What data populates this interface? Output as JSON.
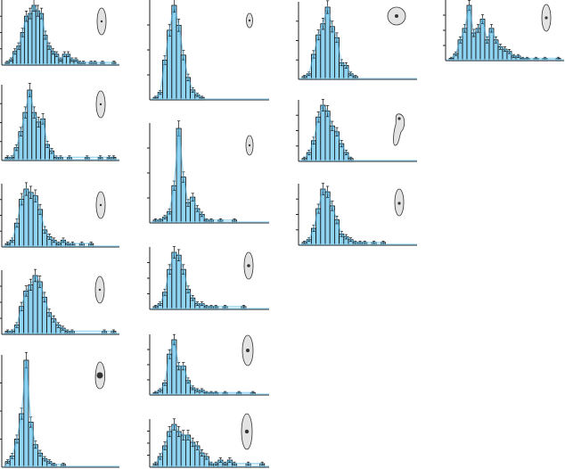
{
  "chart_data": [
    {
      "type": "bar",
      "column": 1,
      "row": 1,
      "shape": "ellipse",
      "dot": "center",
      "values": [
        1,
        2,
        5,
        7,
        12,
        18,
        19,
        22,
        20,
        19,
        11,
        7,
        5,
        4,
        2,
        4,
        4,
        2,
        2,
        1,
        1,
        0,
        1,
        1,
        0,
        1,
        0,
        0,
        1
      ]
    },
    {
      "type": "bar",
      "column": 1,
      "row": 2,
      "shape": "ellipse",
      "dot": "center",
      "values": [
        1,
        1,
        4,
        9,
        15,
        22,
        15,
        12,
        13,
        5,
        3,
        1,
        1,
        0,
        1,
        0,
        0,
        0,
        1,
        0,
        0,
        1,
        0,
        1,
        1
      ]
    },
    {
      "type": "bar",
      "column": 1,
      "row": 3,
      "shape": "ellipse",
      "dot": "center",
      "values": [
        1,
        2,
        7,
        14,
        17,
        16,
        15,
        11,
        5,
        3,
        2,
        1,
        2,
        1,
        1,
        0,
        1,
        0,
        1
      ]
    },
    {
      "type": "bar",
      "column": 1,
      "row": 4,
      "shape": "ellipse",
      "dot": "center",
      "values": [
        1,
        1,
        3,
        9,
        14,
        16,
        19,
        17,
        12,
        7,
        5,
        3,
        2,
        1,
        1,
        0,
        0,
        0,
        0,
        0,
        0,
        1,
        0,
        1
      ]
    },
    {
      "type": "bar",
      "column": 1,
      "row": 5,
      "shape": "pear",
      "dot": "large",
      "values": [
        2,
        4,
        10,
        19,
        38,
        16,
        8,
        5,
        3,
        2,
        1,
        0,
        1
      ]
    },
    {
      "type": "bar",
      "column": 2,
      "row": 1,
      "shape": "ellipse",
      "dot": "center",
      "values": [
        1,
        3,
        16,
        28,
        38,
        30,
        18,
        9,
        4,
        2,
        1
      ]
    },
    {
      "type": "bar",
      "column": 2,
      "row": 2,
      "shape": "ellipse",
      "dot": "center",
      "values": [
        1,
        1,
        2,
        4,
        13,
        33,
        16,
        7,
        9,
        5,
        3,
        1,
        1,
        0,
        1,
        0,
        0,
        1
      ]
    },
    {
      "type": "bar",
      "column": 2,
      "row": 3,
      "shape": "ellipse",
      "dot": "center",
      "values": [
        1,
        2,
        6,
        14,
        20,
        19,
        14,
        7,
        4,
        2,
        2,
        1,
        1,
        1,
        0,
        1,
        0,
        0,
        0,
        1
      ]
    },
    {
      "type": "bar",
      "column": 2,
      "row": 4,
      "shape": "ellipse",
      "dot": "center",
      "values": [
        1,
        2,
        5,
        17,
        23,
        12,
        12,
        6,
        3,
        2,
        2,
        1,
        1,
        1,
        0,
        1,
        0,
        0,
        1,
        0,
        0,
        1
      ]
    },
    {
      "type": "bar",
      "column": 2,
      "row": 5,
      "shape": "ellipse",
      "dot": "center",
      "values": [
        1,
        3,
        6,
        10,
        12,
        10,
        9,
        9,
        7,
        6,
        4,
        3,
        1,
        1,
        2,
        1,
        2,
        1,
        0,
        0,
        1,
        0,
        0,
        1
      ]
    },
    {
      "type": "bar",
      "column": 3,
      "row": 1,
      "shape": "circle",
      "dot": "center",
      "values": [
        1,
        2,
        9,
        16,
        20,
        26,
        19,
        15,
        6,
        5,
        2,
        1
      ]
    },
    {
      "type": "bar",
      "column": 3,
      "row": 2,
      "shape": "irregular",
      "dot": "top",
      "values": [
        1,
        3,
        7,
        15,
        19,
        17,
        12,
        10,
        6,
        3,
        1
      ]
    },
    {
      "type": "bar",
      "column": 3,
      "row": 3,
      "shape": "ellipse",
      "dot": "lower",
      "values": [
        1,
        2,
        6,
        13,
        20,
        19,
        14,
        9,
        4,
        3,
        2,
        1,
        1,
        1,
        0,
        1,
        0,
        1
      ]
    },
    {
      "type": "bar",
      "column": 4,
      "row": 1,
      "shape": "ellipse",
      "dot": "center",
      "values": [
        1,
        3,
        9,
        14,
        24,
        12,
        14,
        18,
        9,
        14,
        9,
        6,
        5,
        4,
        2,
        2,
        1,
        1,
        0,
        1,
        0,
        1,
        0,
        0,
        1
      ]
    }
  ]
}
